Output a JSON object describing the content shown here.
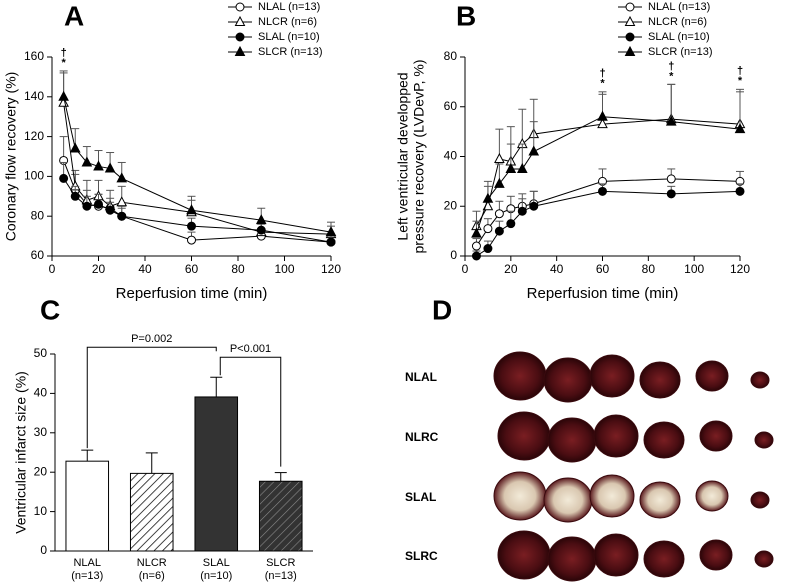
{
  "chart_data": [
    {
      "type": "line",
      "panel": "A",
      "xlabel": "Reperfusion time (min)",
      "ylabel": [
        "Coronary flow recovery (%)"
      ],
      "x": [
        5,
        10,
        15,
        20,
        25,
        30,
        60,
        90,
        120
      ],
      "xlim": [
        0,
        120
      ],
      "xticks": [
        0,
        20,
        40,
        60,
        80,
        100,
        120
      ],
      "ylim": [
        60,
        160
      ],
      "yticks": [
        60,
        80,
        100,
        120,
        140,
        160
      ],
      "series": [
        {
          "name": "NLAL (n=13)",
          "marker": "circle",
          "filled": false,
          "color": "#000000",
          "values": [
            108,
            93,
            86,
            85,
            84,
            80,
            68,
            70,
            67
          ],
          "errors": [
            12,
            8,
            7,
            6,
            5,
            5,
            4,
            3,
            3
          ]
        },
        {
          "name": "NLCR (n=6)",
          "marker": "triangle",
          "filled": false,
          "color": "#000000",
          "values": [
            137,
            95,
            88,
            90,
            85,
            87,
            82,
            72,
            71
          ],
          "errors": [
            15,
            8,
            10,
            8,
            8,
            8,
            6,
            5,
            4
          ]
        },
        {
          "name": "SLAL (n=10)",
          "marker": "circle",
          "filled": true,
          "color": "#000000",
          "values": [
            99,
            90,
            85,
            86,
            83,
            80,
            75,
            73,
            67
          ],
          "errors": [
            8,
            5,
            5,
            5,
            4,
            4,
            4,
            3,
            3
          ]
        },
        {
          "name": "SLCR (n=13)",
          "marker": "triangle",
          "filled": true,
          "color": "#000000",
          "values": [
            140,
            114,
            107,
            105,
            104,
            99,
            83,
            78,
            72
          ],
          "errors": [
            13,
            10,
            8,
            8,
            8,
            8,
            7,
            6,
            5
          ]
        }
      ],
      "annotations": [
        {
          "x": 5,
          "lines": [
            "†",
            "*"
          ]
        }
      ]
    },
    {
      "type": "line",
      "panel": "B",
      "xlabel": "Reperfusion time (min)",
      "ylabel": [
        "Left ventricular developped",
        "pressure recovery (LVDevP, %)"
      ],
      "x": [
        5,
        10,
        15,
        20,
        25,
        30,
        60,
        90,
        120
      ],
      "xlim": [
        0,
        120
      ],
      "xticks": [
        0,
        20,
        40,
        60,
        80,
        100,
        120
      ],
      "ylim": [
        0,
        80
      ],
      "yticks": [
        0,
        20,
        40,
        60,
        80
      ],
      "series": [
        {
          "name": "NLAL (n=13)",
          "marker": "circle",
          "filled": false,
          "color": "#000000",
          "values": [
            4,
            11,
            17,
            19,
            20,
            21,
            30,
            31,
            30
          ],
          "errors": [
            3,
            4,
            5,
            5,
            5,
            5,
            5,
            4,
            4
          ]
        },
        {
          "name": "NLCR (n=6)",
          "marker": "triangle",
          "filled": false,
          "color": "#000000",
          "values": [
            12,
            20,
            39,
            38,
            45,
            49,
            53,
            55,
            53
          ],
          "errors": [
            6,
            8,
            12,
            14,
            14,
            14,
            12,
            14,
            14
          ]
        },
        {
          "name": "SLAL (n=10)",
          "marker": "circle",
          "filled": true,
          "color": "#000000",
          "values": [
            0,
            3,
            10,
            13,
            18,
            20,
            26,
            25,
            26
          ],
          "errors": [
            2,
            3,
            4,
            5,
            5,
            6,
            3,
            3,
            3
          ]
        },
        {
          "name": "SLCR (n=13)",
          "marker": "triangle",
          "filled": true,
          "color": "#000000",
          "values": [
            9,
            23,
            29,
            35,
            35,
            42,
            56,
            54,
            51
          ],
          "errors": [
            5,
            7,
            8,
            10,
            10,
            12,
            10,
            15,
            15
          ]
        }
      ],
      "annotations": [
        {
          "x": 60,
          "lines": [
            "†",
            "*"
          ]
        },
        {
          "x": 90,
          "lines": [
            "†",
            "*"
          ]
        },
        {
          "x": 120,
          "lines": [
            "†",
            "*"
          ]
        }
      ]
    },
    {
      "type": "bar",
      "panel": "C",
      "ylabel": [
        "Ventricular infarct size (%)"
      ],
      "categories": [
        "NLAL",
        "NLCR",
        "SLAL",
        "SLCR"
      ],
      "group_sizes": [
        "(n=13)",
        "(n=6)",
        "(n=10)",
        "(n=13)"
      ],
      "values": [
        22.8,
        19.7,
        39.1,
        17.7
      ],
      "errors": [
        2.8,
        5.2,
        5.0,
        2.2
      ],
      "colors": [
        "#ffffff",
        "#ffffff",
        "#333333",
        "#333333"
      ],
      "hatched": [
        false,
        true,
        false,
        true
      ],
      "ylim": [
        0,
        50
      ],
      "yticks": [
        0,
        10,
        20,
        30,
        40,
        50
      ],
      "comparisons": [
        "P=0.002",
        "P<0.001"
      ]
    }
  ],
  "panel_d": {
    "panel": "D",
    "rows": [
      "NLAL",
      "NLRC",
      "SLAL",
      "SLRC"
    ]
  }
}
